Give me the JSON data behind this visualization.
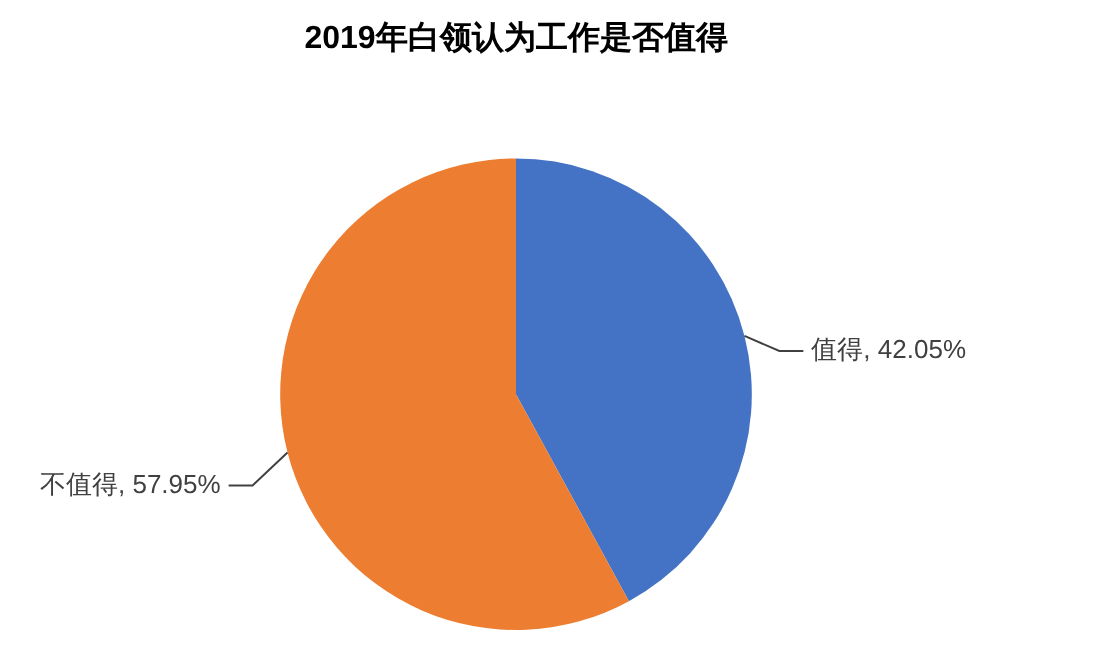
{
  "chart_data": {
    "type": "pie",
    "title": "2019年白领认为工作是否值得",
    "categories": [
      "值得",
      "不值得"
    ],
    "values": [
      42.05,
      57.95
    ],
    "colors": [
      "#4472c4",
      "#ed7d31"
    ],
    "value_labels": [
      "42.05%",
      "57.95%"
    ],
    "legend": false
  }
}
